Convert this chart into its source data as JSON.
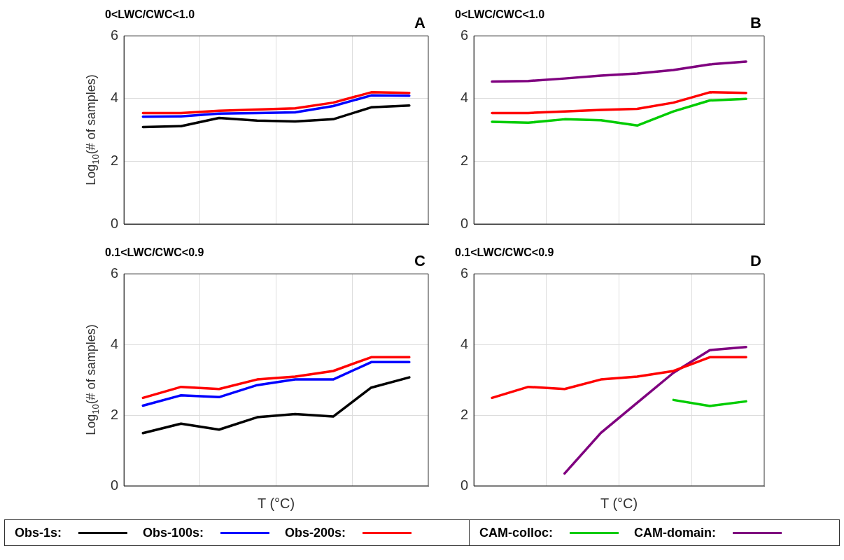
{
  "chart_data": [
    {
      "type": "line",
      "title": "0<LWC/CWC<1.0",
      "ylabel": "Log$_{10}$(# of samples)",
      "annotations": [
        "A"
      ],
      "categories": [
        null,
        null,
        null,
        null,
        null,
        null,
        null,
        null
      ],
      "ylim": [
        0,
        6
      ],
      "yticks": [
        0,
        2,
        4,
        6
      ],
      "grid": true,
      "tick_labels": "y",
      "legend": "bottom",
      "series": [
        {
          "name": "Obs-1s:",
          "color": "#000000",
          "values": [
            3.09,
            3.12,
            3.38,
            3.3,
            3.27,
            3.34,
            3.72,
            3.78
          ]
        },
        {
          "name": "Obs-100s:",
          "color": "#0000ff",
          "values": [
            3.42,
            3.43,
            3.52,
            3.54,
            3.56,
            3.76,
            4.1,
            4.09
          ]
        },
        {
          "name": "Obs-200s:",
          "color": "#ff0000",
          "values": [
            3.54,
            3.54,
            3.61,
            3.65,
            3.69,
            3.87,
            4.2,
            4.18
          ]
        }
      ]
    },
    {
      "type": "line",
      "title": "0<LWC/CWC<1.0",
      "annotations": [
        "B"
      ],
      "categories": [
        null,
        null,
        null,
        null,
        null,
        null,
        null,
        null
      ],
      "ylim": [
        0,
        6
      ],
      "yticks": [
        0,
        2,
        4,
        6
      ],
      "grid": true,
      "tick_labels": "y",
      "legend": "bottom",
      "series": [
        {
          "name": "Obs-200s:",
          "color": "#ff0000",
          "values": [
            3.54,
            3.54,
            3.59,
            3.64,
            3.67,
            3.87,
            4.2,
            4.18
          ]
        },
        {
          "name": "CAM-colloc:",
          "color": "#00cc00",
          "values": [
            3.26,
            3.23,
            3.34,
            3.31,
            3.14,
            3.59,
            3.94,
            3.99
          ]
        },
        {
          "name": "CAM-domain:",
          "color": "#7f007f",
          "values": [
            4.54,
            4.56,
            4.64,
            4.73,
            4.8,
            4.91,
            5.09,
            5.18
          ]
        }
      ]
    },
    {
      "type": "line",
      "title": "0.1<LWC/CWC<0.9",
      "xlabel": "T (°C)",
      "ylabel": "Log$_{10}$(# of samples)",
      "annotations": [
        "C"
      ],
      "categories": [
        null,
        null,
        null,
        null,
        null,
        null,
        null,
        null
      ],
      "ylim": [
        0,
        6
      ],
      "yticks": [
        0,
        2,
        4,
        6
      ],
      "grid": true,
      "tick_labels": "y",
      "series": [
        {
          "name": "Obs-1s:",
          "color": "#000000",
          "values": [
            1.49,
            1.76,
            1.59,
            1.94,
            2.03,
            1.96,
            2.78,
            3.07
          ]
        },
        {
          "name": "Obs-100s:",
          "color": "#0000ff",
          "values": [
            2.27,
            2.56,
            2.51,
            2.85,
            3.01,
            3.01,
            3.5,
            3.5
          ]
        },
        {
          "name": "Obs-200s:",
          "color": "#ff0000",
          "values": [
            2.49,
            2.8,
            2.74,
            3.01,
            3.09,
            3.25,
            3.64,
            3.64
          ]
        }
      ]
    },
    {
      "type": "line",
      "title": "0.1<LWC/CWC<0.9",
      "xlabel": "T (°C)",
      "annotations": [
        "D"
      ],
      "categories": [
        null,
        null,
        null,
        null,
        null,
        null,
        null,
        null
      ],
      "ylim": [
        0,
        6
      ],
      "yticks": [
        0,
        2,
        4,
        6
      ],
      "grid": true,
      "tick_labels": "y",
      "series": [
        {
          "name": "Obs-200s:",
          "color": "#ff0000",
          "values": [
            2.49,
            2.8,
            2.74,
            3.01,
            3.09,
            3.25,
            3.64,
            3.64
          ]
        },
        {
          "name": "CAM-colloc:",
          "color": "#00cc00",
          "values": [
            null,
            null,
            null,
            null,
            null,
            2.43,
            2.26,
            2.39
          ]
        },
        {
          "name": "CAM-domain:",
          "color": "#7f007f",
          "values": [
            null,
            null,
            0.35,
            1.5,
            2.35,
            3.2,
            3.84,
            3.93
          ]
        }
      ]
    }
  ]
}
